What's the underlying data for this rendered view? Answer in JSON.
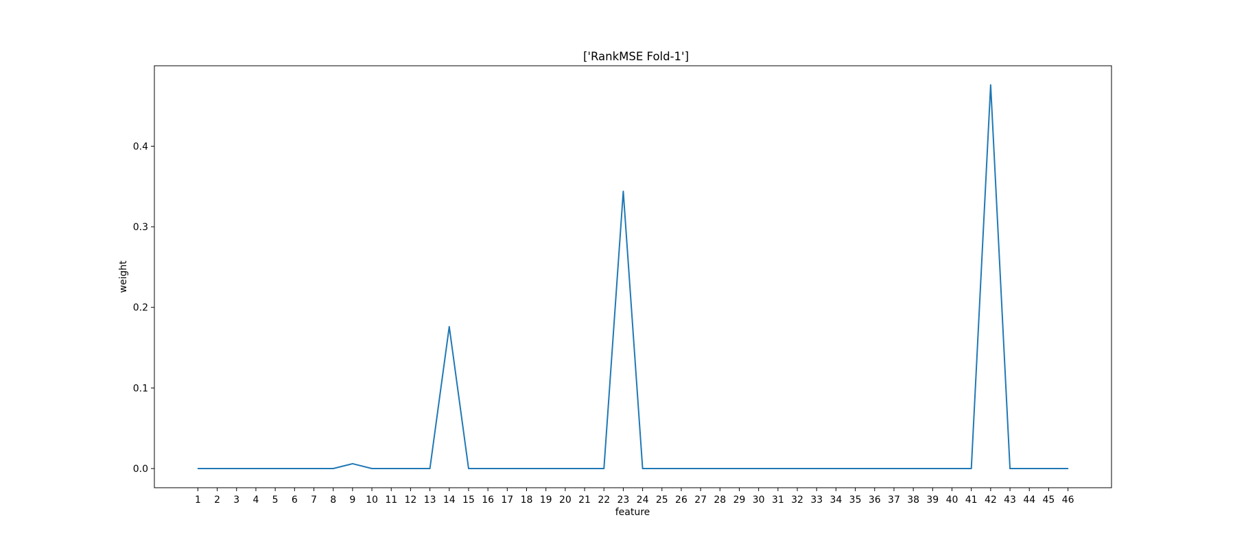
{
  "chart_data": {
    "type": "line",
    "title": "['RankMSE Fold-1']",
    "xlabel": "feature",
    "ylabel": "weight",
    "x": [
      1,
      2,
      3,
      4,
      5,
      6,
      7,
      8,
      9,
      10,
      11,
      12,
      13,
      14,
      15,
      16,
      17,
      18,
      19,
      20,
      21,
      22,
      23,
      24,
      25,
      26,
      27,
      28,
      29,
      30,
      31,
      32,
      33,
      34,
      35,
      36,
      37,
      38,
      39,
      40,
      41,
      42,
      43,
      44,
      45,
      46
    ],
    "series": [
      {
        "color": "#1f77b4",
        "values": [
          0,
          0,
          0,
          0,
          0,
          0,
          0,
          0,
          0.006,
          0,
          0,
          0,
          0,
          0.176,
          0,
          0,
          0,
          0,
          0,
          0,
          0,
          0,
          0.344,
          0,
          0,
          0,
          0,
          0,
          0,
          0,
          0,
          0,
          0,
          0,
          0,
          0,
          0,
          0,
          0,
          0,
          0,
          0.476,
          0,
          0,
          0,
          0
        ]
      }
    ],
    "xticks": [
      "1",
      "2",
      "3",
      "4",
      "5",
      "6",
      "7",
      "8",
      "9",
      "10",
      "11",
      "12",
      "13",
      "14",
      "15",
      "16",
      "17",
      "18",
      "19",
      "20",
      "21",
      "22",
      "23",
      "24",
      "25",
      "26",
      "27",
      "28",
      "29",
      "30",
      "31",
      "32",
      "33",
      "34",
      "35",
      "36",
      "37",
      "38",
      "39",
      "40",
      "41",
      "42",
      "43",
      "44",
      "45",
      "46"
    ],
    "yticks": [
      0.0,
      0.1,
      0.2,
      0.3,
      0.4
    ],
    "ytick_labels": [
      "0.0",
      "0.1",
      "0.2",
      "0.3",
      "0.4"
    ],
    "xlim": [
      -1.25,
      48.25
    ],
    "ylim": [
      -0.0238,
      0.4998
    ],
    "grid": false,
    "legend": "none"
  }
}
